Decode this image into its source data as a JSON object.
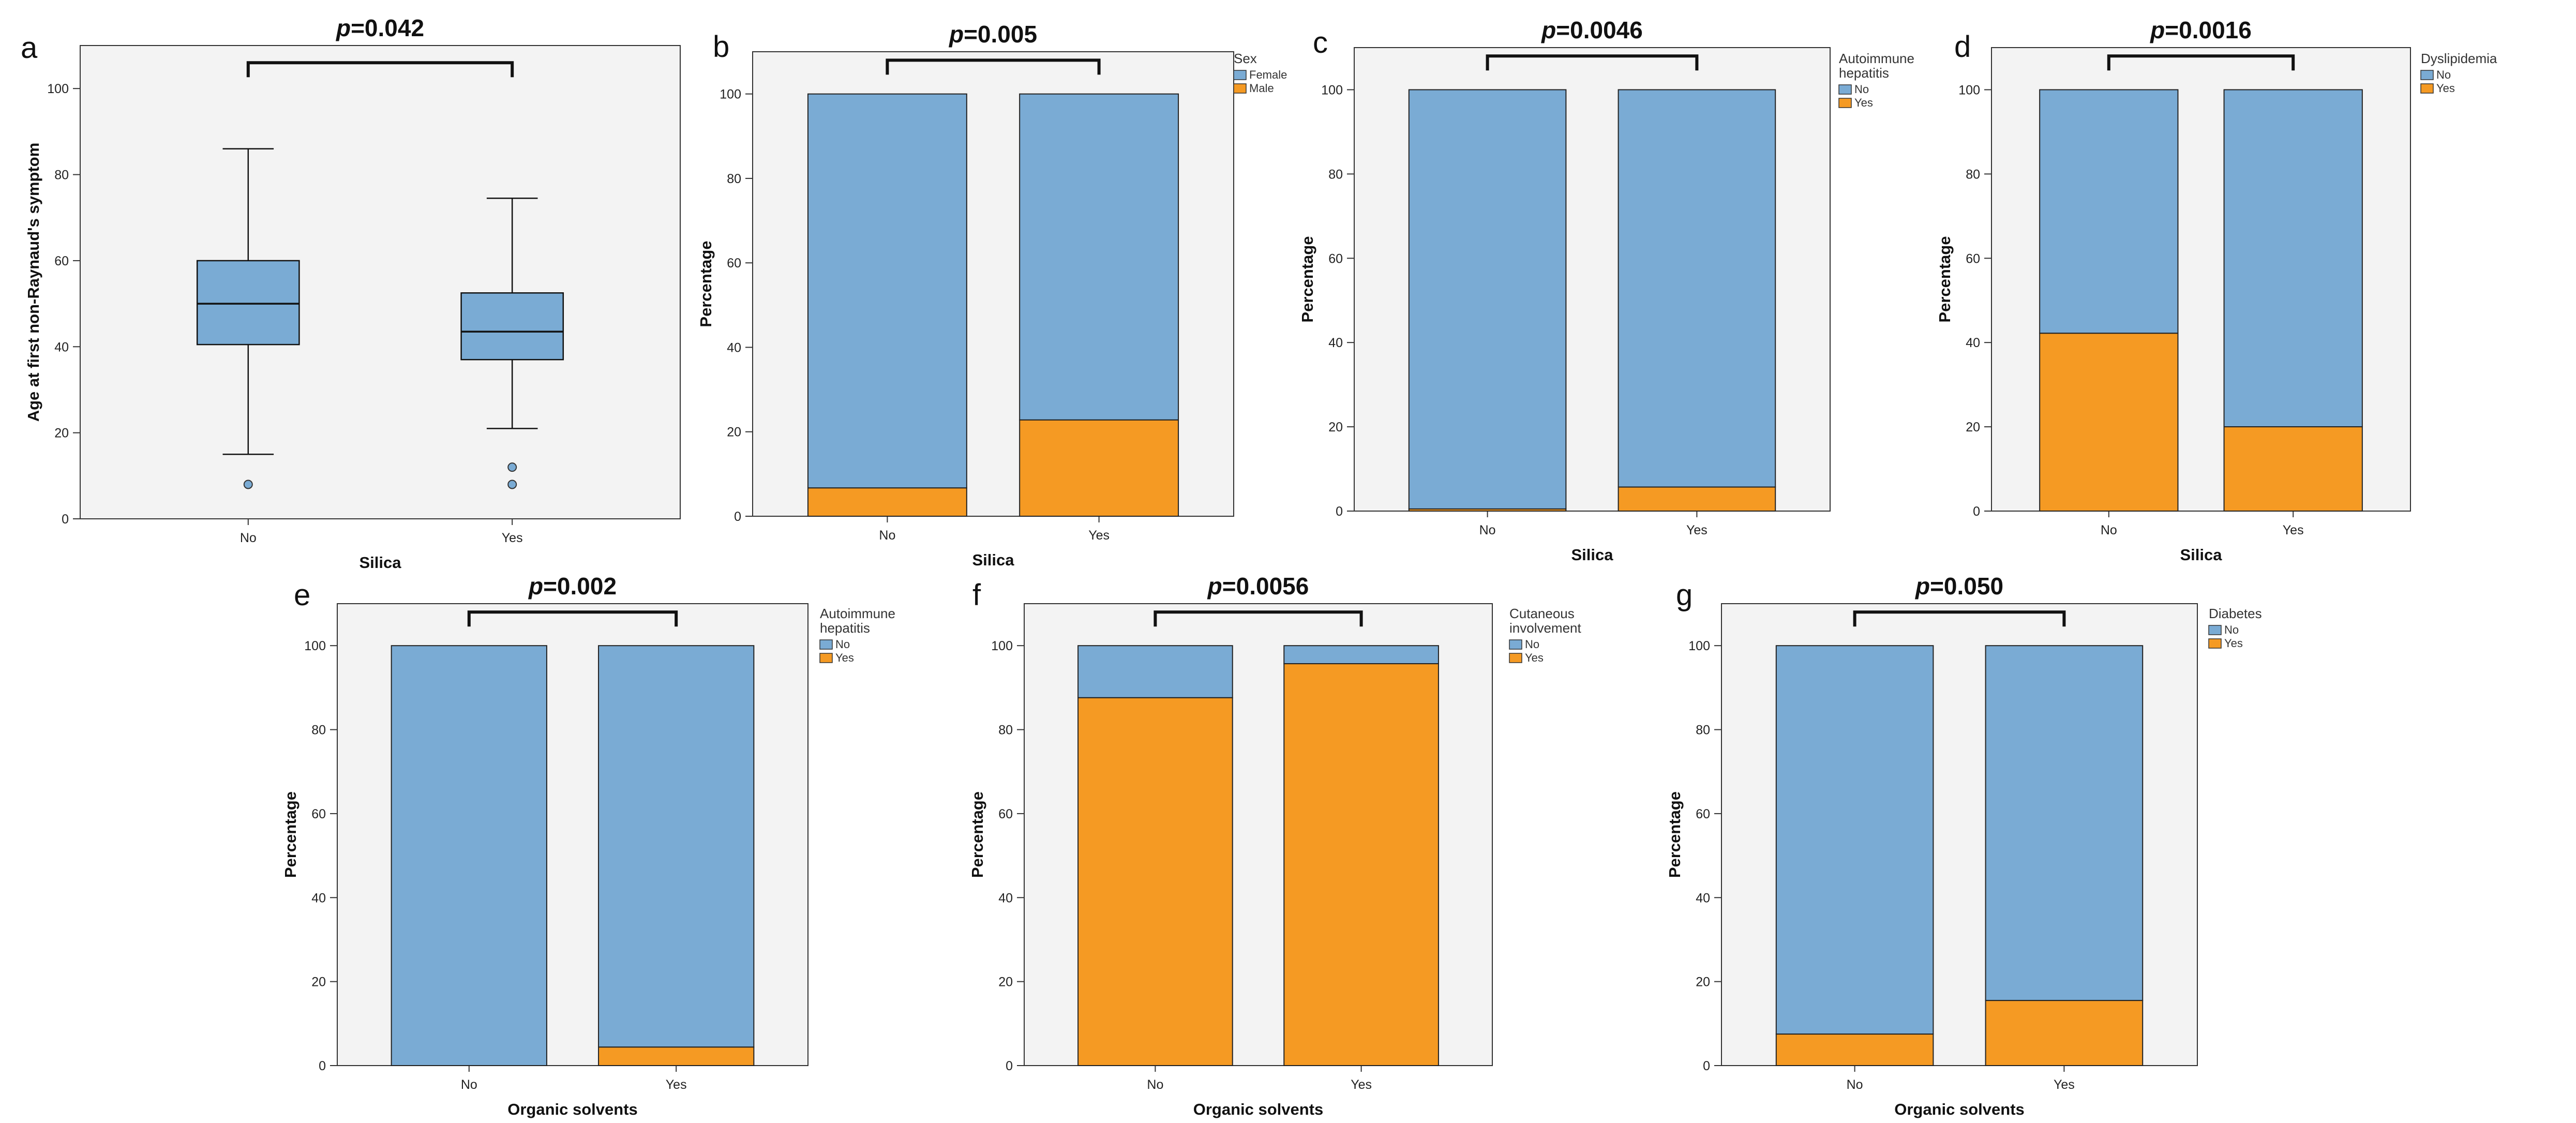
{
  "colors": {
    "no_fill": "#7aabd4",
    "yes_fill": "#f59a23",
    "plot_bg": "#f3f3f3",
    "box_fill": "#7aabd4",
    "stroke": "#222222"
  },
  "chart_data": [
    {
      "panel": "a",
      "type": "box",
      "title_p": "p",
      "title_value": "=0.042",
      "xlabel": "Silica",
      "ylabel": "Age at first non-Raynaud's symptom",
      "ylim": [
        0,
        110
      ],
      "yticks": [
        0,
        20,
        40,
        60,
        80,
        100
      ],
      "categories": [
        "No",
        "Yes"
      ],
      "boxes": [
        {
          "category": "No",
          "whisker_low": 15,
          "q1": 40.5,
          "median": 50,
          "q3": 60,
          "whisker_high": 86,
          "outliers": [
            8
          ]
        },
        {
          "category": "Yes",
          "whisker_low": 21,
          "q1": 37,
          "median": 43.5,
          "q3": 52.5,
          "whisker_high": 74.5,
          "outliers": [
            12,
            8
          ]
        }
      ]
    },
    {
      "panel": "b",
      "type": "stacked-bar",
      "title_p": "p",
      "title_value": "=0.005",
      "xlabel": "Silica",
      "ylabel": "Percentage",
      "ylim": [
        0,
        110
      ],
      "yticks": [
        0,
        20,
        40,
        60,
        80,
        100
      ],
      "categories": [
        "No",
        "Yes"
      ],
      "legend_title": [
        "Sex"
      ],
      "series": [
        {
          "name": "Female",
          "values": [
            93.3,
            77.2
          ]
        },
        {
          "name": "Male",
          "values": [
            6.7,
            22.8
          ]
        }
      ]
    },
    {
      "panel": "c",
      "type": "stacked-bar",
      "title_p": "p",
      "title_value": "=0.0046",
      "xlabel": "Silica",
      "ylabel": "Percentage",
      "ylim": [
        0,
        110
      ],
      "yticks": [
        0,
        20,
        40,
        60,
        80,
        100
      ],
      "categories": [
        "No",
        "Yes"
      ],
      "legend_title": [
        "Autoimmune",
        "hepatitis"
      ],
      "series": [
        {
          "name": "No",
          "values": [
            99.5,
            94.3
          ]
        },
        {
          "name": "Yes",
          "values": [
            0.5,
            5.7
          ]
        }
      ]
    },
    {
      "panel": "d",
      "type": "stacked-bar",
      "title_p": "p",
      "title_value": "=0.0016",
      "xlabel": "Silica",
      "ylabel": "Percentage",
      "ylim": [
        0,
        110
      ],
      "yticks": [
        0,
        20,
        40,
        60,
        80,
        100
      ],
      "categories": [
        "No",
        "Yes"
      ],
      "legend_title": [
        "Dyslipidemia"
      ],
      "series": [
        {
          "name": "No",
          "values": [
            57.8,
            80.0
          ]
        },
        {
          "name": "Yes",
          "values": [
            42.2,
            20.0
          ]
        }
      ]
    },
    {
      "panel": "e",
      "type": "stacked-bar",
      "title_p": "p",
      "title_value": "=0.002",
      "xlabel": "Organic solvents",
      "ylabel": "Percentage",
      "ylim": [
        0,
        110
      ],
      "yticks": [
        0,
        20,
        40,
        60,
        80,
        100
      ],
      "categories": [
        "No",
        "Yes"
      ],
      "legend_title": [
        "Autoimmune",
        "hepatitis"
      ],
      "series": [
        {
          "name": "No",
          "values": [
            100.0,
            95.6
          ]
        },
        {
          "name": "Yes",
          "values": [
            0.0,
            4.4
          ]
        }
      ]
    },
    {
      "panel": "f",
      "type": "stacked-bar",
      "title_p": "p",
      "title_value": "=0.0056",
      "xlabel": "Organic solvents",
      "ylabel": "Percentage",
      "ylim": [
        0,
        110
      ],
      "yticks": [
        0,
        20,
        40,
        60,
        80,
        100
      ],
      "categories": [
        "No",
        "Yes"
      ],
      "legend_title": [
        "Cutaneous",
        "involvement"
      ],
      "series": [
        {
          "name": "No",
          "values": [
            12.4,
            4.3
          ]
        },
        {
          "name": "Yes",
          "values": [
            87.6,
            95.7
          ]
        }
      ]
    },
    {
      "panel": "g",
      "type": "stacked-bar",
      "title_p": "p",
      "title_value": "=0.050",
      "xlabel": "Organic solvents",
      "ylabel": "Percentage",
      "ylim": [
        0,
        110
      ],
      "yticks": [
        0,
        20,
        40,
        60,
        80,
        100
      ],
      "categories": [
        "No",
        "Yes"
      ],
      "legend_title": [
        "Diabetes"
      ],
      "series": [
        {
          "name": "No",
          "values": [
            92.5,
            84.5
          ]
        },
        {
          "name": "Yes",
          "values": [
            7.5,
            15.5
          ]
        }
      ]
    }
  ]
}
